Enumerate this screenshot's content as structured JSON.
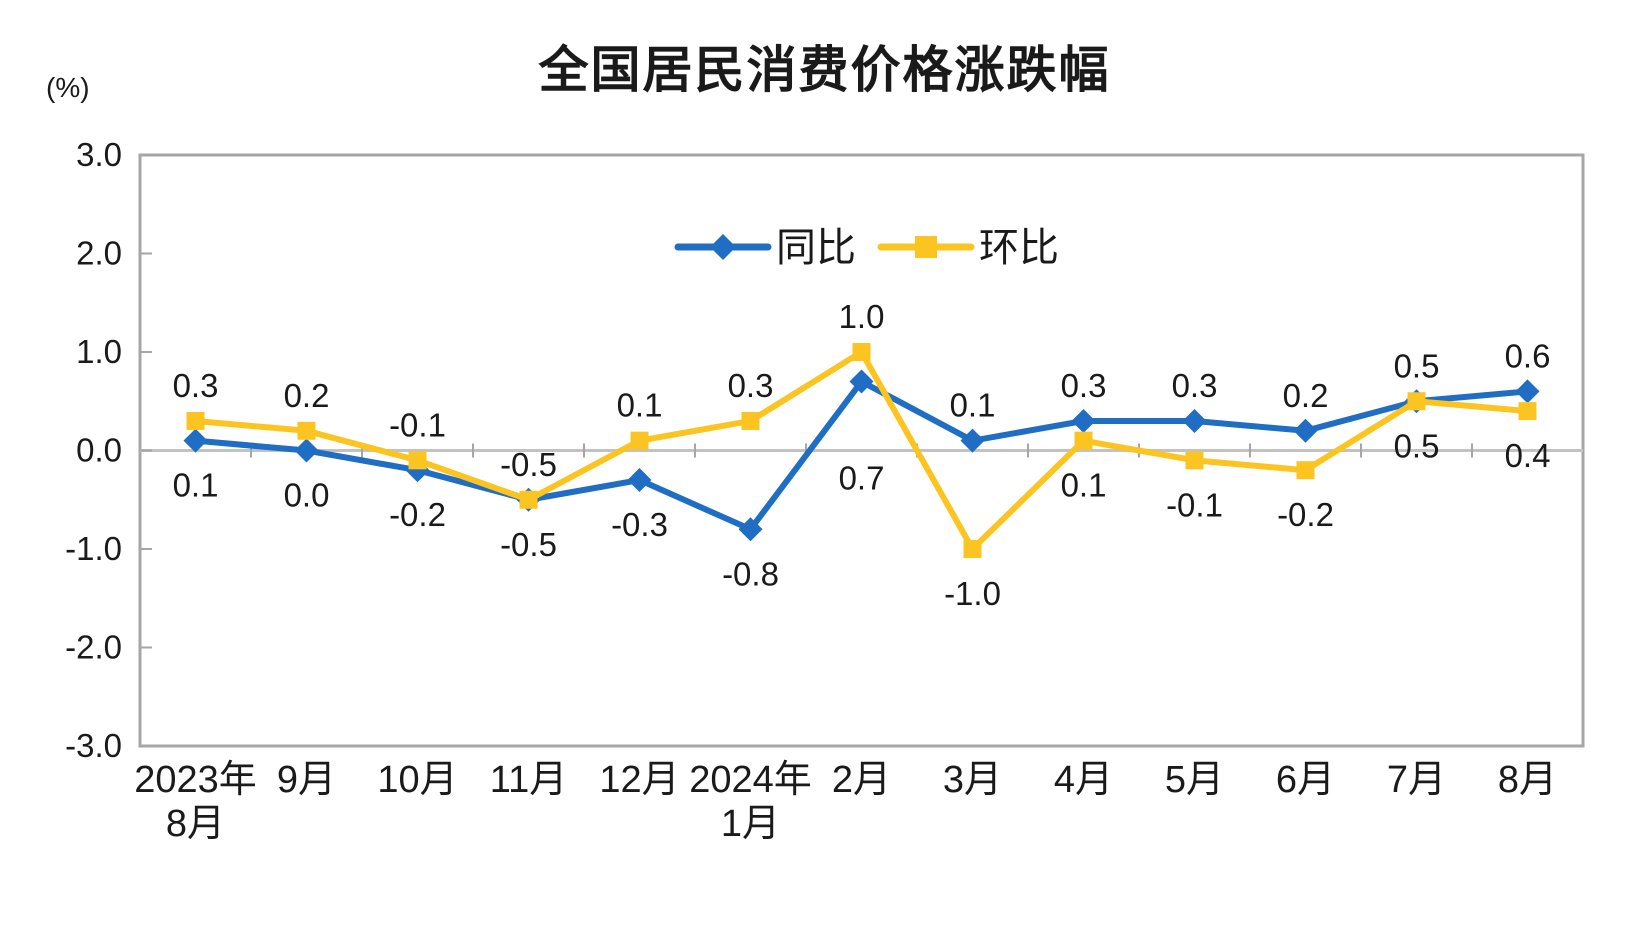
{
  "chart_data": {
    "type": "line",
    "title": "全国居民消费价格涨跌幅",
    "unit_label": "(%)",
    "categories": [
      [
        "2023年",
        "8月"
      ],
      [
        "9月"
      ],
      [
        "10月"
      ],
      [
        "11月"
      ],
      [
        "12月"
      ],
      [
        "2024年",
        "1月"
      ],
      [
        "2月"
      ],
      [
        "3月"
      ],
      [
        "4月"
      ],
      [
        "5月"
      ],
      [
        "6月"
      ],
      [
        "7月"
      ],
      [
        "8月"
      ]
    ],
    "series": [
      {
        "name": "同比",
        "semantic": "yoy",
        "color": "#1F6EC4",
        "marker": "diamond",
        "values": [
          0.1,
          0.0,
          -0.2,
          -0.5,
          -0.3,
          -0.8,
          0.7,
          0.1,
          0.3,
          0.3,
          0.2,
          0.5,
          0.6
        ],
        "label_side": [
          "below",
          "below",
          "below",
          "below",
          "below",
          "below",
          "below",
          "above",
          "above",
          "above",
          "above",
          "above",
          "above"
        ]
      },
      {
        "name": "环比",
        "semantic": "mom",
        "color": "#FCC420",
        "marker": "square",
        "values": [
          0.3,
          0.2,
          -0.1,
          -0.5,
          0.1,
          0.3,
          1.0,
          -1.0,
          0.1,
          -0.1,
          -0.2,
          0.5,
          0.4
        ],
        "label_side": [
          "above",
          "above",
          "above",
          "above",
          "above",
          "above",
          "above",
          "below",
          "below",
          "below",
          "below",
          "below",
          "below"
        ]
      }
    ],
    "label_overrides": [
      {
        "series": 0,
        "index": 6,
        "dy": 108
      }
    ],
    "ylim": [
      -3.0,
      3.0
    ],
    "yticks": [
      3.0,
      2.0,
      1.0,
      0.0,
      -1.0,
      -2.0,
      -3.0
    ],
    "grid": "zero-line-only",
    "legend_position": "top-center-inside",
    "axis_color": "#A6A6A6",
    "zero_line_color": "#C2C2C2",
    "text_color": "#1A1A1A"
  }
}
